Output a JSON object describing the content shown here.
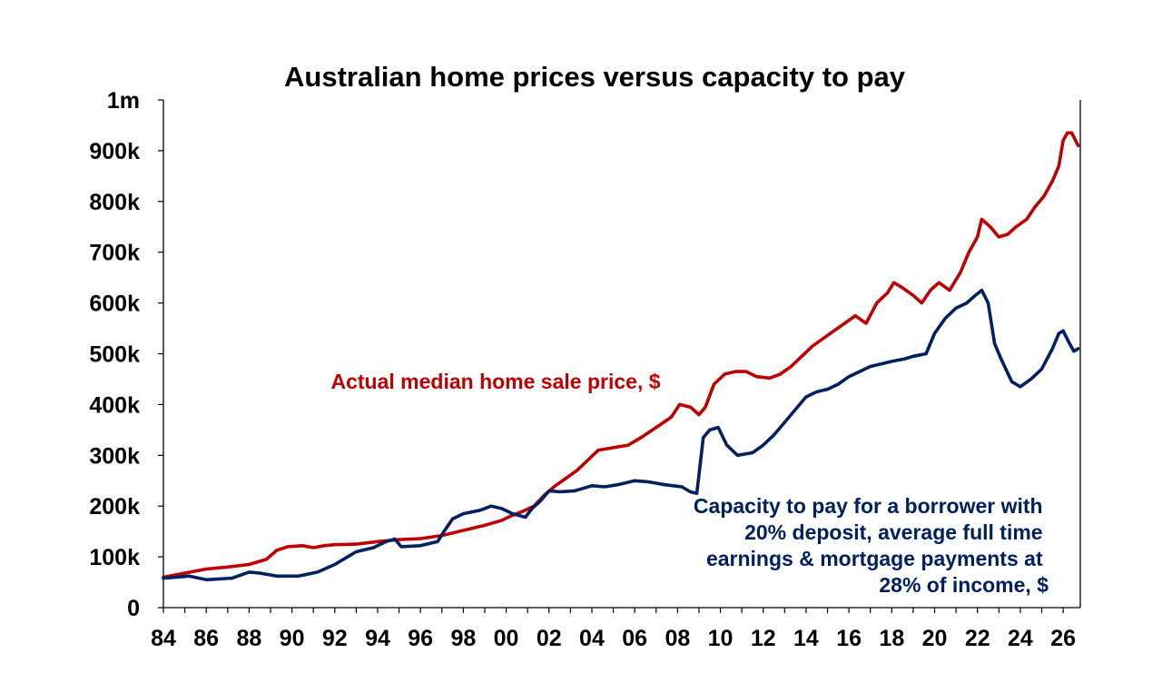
{
  "chart_data": {
    "type": "line",
    "title": "Australian home prices versus capacity to pay",
    "xlabel": "",
    "ylabel": "",
    "x_range": [
      1984,
      2026.8
    ],
    "ylim": [
      0,
      1000000
    ],
    "grid": false,
    "legend": "none",
    "x_ticks": [
      1984,
      1986,
      1988,
      1990,
      1992,
      1994,
      1996,
      1998,
      2000,
      2002,
      2004,
      2006,
      2008,
      2010,
      2012,
      2014,
      2016,
      2018,
      2020,
      2022,
      2024,
      2026
    ],
    "x_tick_labels": [
      "84",
      "86",
      "88",
      "90",
      "92",
      "94",
      "96",
      "98",
      "00",
      "02",
      "04",
      "06",
      "08",
      "10",
      "12",
      "14",
      "16",
      "18",
      "20",
      "22",
      "24",
      "26"
    ],
    "y_ticks": [
      0,
      100000,
      200000,
      300000,
      400000,
      500000,
      600000,
      700000,
      800000,
      900000,
      1000000
    ],
    "y_tick_labels": [
      "0",
      "100k",
      "200k",
      "300k",
      "400k",
      "500k",
      "600k",
      "700k",
      "800k",
      "900k",
      "1m"
    ],
    "series": [
      {
        "name": "Actual median home sale price, $",
        "color": "#c00000",
        "x": [
          1984.0,
          1985.0,
          1986.0,
          1987.0,
          1988.0,
          1988.8,
          1989.3,
          1989.8,
          1990.5,
          1991.0,
          1991.5,
          1992.0,
          1993.0,
          1994.0,
          1995.0,
          1996.0,
          1997.0,
          1998.0,
          1999.0,
          1999.8,
          2000.3,
          2000.8,
          2001.3,
          2001.8,
          2002.3,
          2002.8,
          2003.3,
          2003.8,
          2004.3,
          2005.0,
          2005.7,
          2006.3,
          2007.0,
          2007.7,
          2008.1,
          2008.6,
          2009.0,
          2009.3,
          2009.7,
          2010.2,
          2010.7,
          2011.2,
          2011.7,
          2012.3,
          2012.8,
          2013.3,
          2013.8,
          2014.3,
          2014.8,
          2015.3,
          2015.8,
          2016.3,
          2016.8,
          2017.3,
          2017.8,
          2018.1,
          2018.5,
          2019.0,
          2019.4,
          2019.8,
          2020.2,
          2020.7,
          2021.2,
          2021.6,
          2022.0,
          2022.2,
          2022.6,
          2023.0,
          2023.4,
          2023.8,
          2024.3,
          2024.7,
          2025.1,
          2025.5,
          2025.8,
          2026.0,
          2026.2,
          2026.4,
          2026.7
        ],
        "values": [
          60000,
          68000,
          76000,
          80000,
          85000,
          95000,
          113000,
          120000,
          122000,
          118000,
          122000,
          124000,
          125000,
          130000,
          134000,
          136000,
          142000,
          152000,
          162000,
          172000,
          182000,
          190000,
          200000,
          222000,
          240000,
          255000,
          270000,
          290000,
          310000,
          315000,
          320000,
          335000,
          355000,
          375000,
          400000,
          395000,
          380000,
          395000,
          440000,
          460000,
          465000,
          465000,
          455000,
          452000,
          460000,
          475000,
          495000,
          515000,
          530000,
          545000,
          560000,
          575000,
          560000,
          600000,
          620000,
          640000,
          630000,
          615000,
          600000,
          625000,
          640000,
          625000,
          660000,
          700000,
          730000,
          765000,
          750000,
          730000,
          735000,
          750000,
          765000,
          790000,
          810000,
          840000,
          870000,
          920000,
          935000,
          935000,
          910000
        ]
      },
      {
        "name": "Capacity to pay for a borrower with 20% deposit, average full time earnings & mortgage payments at 28% of income, $",
        "color": "#002060",
        "x": [
          1984.0,
          1985.2,
          1986.0,
          1987.2,
          1988.0,
          1988.5,
          1989.3,
          1990.3,
          1991.2,
          1992.0,
          1992.6,
          1993.0,
          1993.8,
          1994.4,
          1994.8,
          1995.1,
          1996.0,
          1996.8,
          1997.1,
          1997.5,
          1998.0,
          1998.8,
          1999.3,
          1999.8,
          2000.3,
          2000.9,
          2001.2,
          2001.6,
          2002.0,
          2002.5,
          2003.2,
          2004.0,
          2004.6,
          2005.2,
          2006.0,
          2006.6,
          2007.0,
          2007.4,
          2007.8,
          2008.2,
          2008.6,
          2008.9,
          2009.2,
          2009.5,
          2009.9,
          2010.3,
          2010.8,
          2011.5,
          2012.0,
          2012.5,
          2013.0,
          2013.5,
          2014.0,
          2014.5,
          2015.0,
          2015.5,
          2016.0,
          2016.5,
          2017.0,
          2017.5,
          2018.0,
          2018.6,
          2019.0,
          2019.6,
          2020.0,
          2020.5,
          2021.0,
          2021.5,
          2021.9,
          2022.2,
          2022.5,
          2022.8,
          2023.1,
          2023.6,
          2024.0,
          2024.5,
          2025.0,
          2025.5,
          2025.8,
          2026.0,
          2026.3,
          2026.5,
          2026.7
        ],
        "values": [
          58000,
          62000,
          55000,
          58000,
          70000,
          68000,
          62000,
          62000,
          70000,
          85000,
          100000,
          110000,
          118000,
          130000,
          135000,
          120000,
          122000,
          130000,
          150000,
          175000,
          185000,
          192000,
          200000,
          195000,
          185000,
          178000,
          195000,
          210000,
          230000,
          228000,
          230000,
          240000,
          238000,
          242000,
          250000,
          248000,
          245000,
          242000,
          240000,
          238000,
          228000,
          225000,
          335000,
          350000,
          355000,
          320000,
          300000,
          305000,
          320000,
          340000,
          365000,
          390000,
          415000,
          425000,
          430000,
          440000,
          455000,
          465000,
          475000,
          480000,
          485000,
          490000,
          495000,
          500000,
          540000,
          570000,
          590000,
          600000,
          615000,
          625000,
          600000,
          520000,
          490000,
          445000,
          435000,
          450000,
          470000,
          510000,
          540000,
          545000,
          520000,
          505000,
          510000
        ]
      }
    ],
    "annotations": [
      {
        "text": "Actual median home sale price, $",
        "color": "#c00000"
      },
      {
        "lines": [
          "Capacity to pay for a borrower with",
          "20% deposit, average full time",
          "earnings & mortgage payments at",
          "28% of income, $"
        ],
        "color": "#002060"
      }
    ]
  }
}
